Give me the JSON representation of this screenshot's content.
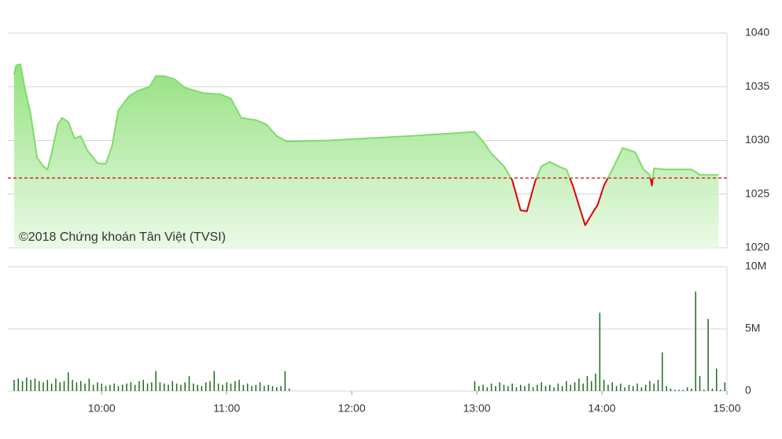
{
  "chart_data": [
    {
      "type": "line",
      "watermark": "©2018 Chứng khoán Tân Việt (TVSI)",
      "reference": 1026.5,
      "reference_color": "#e00000",
      "up_color": "#7fdb6a",
      "down_color": "#e00000",
      "xlim": [
        555,
        900
      ],
      "ylim": [
        1020,
        1040
      ],
      "yticks": [
        1020,
        1025,
        1030,
        1035,
        1040
      ],
      "grid": true,
      "x": [
        558,
        559,
        561,
        563,
        566,
        569,
        572,
        574,
        576,
        579,
        581,
        584,
        587,
        590,
        593,
        598,
        602,
        605,
        608,
        613,
        617,
        623,
        626,
        630,
        635,
        640,
        649,
        657,
        662,
        667,
        674,
        679,
        684,
        689,
        709,
        747,
        779,
        783,
        787,
        793,
        797,
        801,
        804,
        808,
        811,
        815,
        819,
        823,
        826,
        832,
        836,
        838,
        841,
        845,
        850,
        856,
        860,
        863,
        864,
        865,
        870,
        883,
        887,
        896
      ],
      "values": [
        1036.1,
        1037,
        1037.1,
        1035,
        1032.4,
        1028.4,
        1027.6,
        1027.3,
        1028.8,
        1031.5,
        1032.1,
        1031.7,
        1030.2,
        1030.4,
        1029.1,
        1027.9,
        1027.8,
        1029.5,
        1032.8,
        1034.1,
        1034.6,
        1035,
        1036,
        1036,
        1035.7,
        1034.9,
        1034.4,
        1034.3,
        1033.9,
        1032.1,
        1031.9,
        1031.5,
        1030.4,
        1029.9,
        1030,
        1030.4,
        1030.8,
        1029.9,
        1028.8,
        1027.6,
        1026.3,
        1023.5,
        1023.4,
        1026.2,
        1027.6,
        1028,
        1027.6,
        1027.3,
        1025.8,
        1022.1,
        1023.4,
        1024,
        1025.8,
        1027.3,
        1029.3,
        1028.9,
        1027.3,
        1026.8,
        1025.8,
        1027.4,
        1027.3,
        1027.3,
        1026.8,
        1026.8
      ]
    },
    {
      "type": "bar",
      "color": "#1e6b1e",
      "xlim": [
        555,
        900
      ],
      "xticks": [
        {
          "value": 600,
          "label": "10:00"
        },
        {
          "value": 660,
          "label": "11:00"
        },
        {
          "value": 720,
          "label": "12:00"
        },
        {
          "value": 780,
          "label": "13:00"
        },
        {
          "value": 840,
          "label": "14:00"
        },
        {
          "value": 900,
          "label": "15:00"
        }
      ],
      "ylim": [
        0,
        10000000
      ],
      "yticks": [
        0,
        {
          "value": 5000000,
          "label": "5M"
        },
        {
          "value": 10000000,
          "label": "10M"
        }
      ],
      "grid": true,
      "x": [
        558,
        560,
        562,
        564,
        566,
        568,
        570,
        572,
        574,
        576,
        578,
        580,
        582,
        584,
        586,
        588,
        590,
        592,
        594,
        596,
        598,
        600,
        602,
        604,
        606,
        608,
        610,
        612,
        614,
        616,
        618,
        620,
        622,
        624,
        626,
        628,
        630,
        632,
        634,
        636,
        638,
        640,
        642,
        644,
        646,
        648,
        650,
        652,
        654,
        656,
        658,
        660,
        662,
        664,
        666,
        668,
        670,
        672,
        674,
        676,
        678,
        680,
        682,
        684,
        686,
        688,
        690,
        779,
        781,
        783,
        785,
        787,
        789,
        791,
        793,
        795,
        797,
        799,
        801,
        803,
        805,
        807,
        809,
        811,
        813,
        815,
        817,
        819,
        821,
        823,
        825,
        827,
        829,
        831,
        833,
        835,
        837,
        839,
        841,
        843,
        845,
        847,
        849,
        851,
        853,
        855,
        857,
        859,
        861,
        863,
        865,
        867,
        869,
        871,
        873,
        875,
        877,
        879,
        881,
        883,
        885,
        887,
        889,
        891,
        893,
        895,
        897,
        899
      ],
      "values": [
        900000,
        1000000,
        800000,
        1100000,
        900000,
        1000000,
        800000,
        700000,
        900000,
        600000,
        1000000,
        700000,
        800000,
        1500000,
        900000,
        700000,
        800000,
        600000,
        1000000,
        500000,
        700000,
        600000,
        400000,
        500000,
        600000,
        400000,
        500000,
        600000,
        700000,
        500000,
        800000,
        900000,
        600000,
        700000,
        1600000,
        700000,
        600000,
        500000,
        800000,
        600000,
        500000,
        700000,
        1200000,
        600000,
        500000,
        400000,
        700000,
        800000,
        1600000,
        600000,
        500000,
        700000,
        600000,
        800000,
        900000,
        500000,
        600000,
        400000,
        500000,
        700000,
        400000,
        500000,
        400000,
        300000,
        400000,
        1600000,
        200000,
        800000,
        400000,
        500000,
        300000,
        600000,
        400000,
        700000,
        500000,
        400000,
        600000,
        300000,
        500000,
        400000,
        600000,
        300000,
        500000,
        700000,
        400000,
        500000,
        300000,
        600000,
        400000,
        800000,
        500000,
        700000,
        1000000,
        600000,
        1200000,
        800000,
        1400000,
        6300000,
        900000,
        500000,
        700000,
        400000,
        600000,
        300000,
        500000,
        400000,
        600000,
        300000,
        500000,
        800000,
        600000,
        900000,
        3100000,
        400000,
        200000,
        100000,
        100000,
        100000,
        300000,
        200000,
        8000000,
        1200000,
        100000,
        5800000,
        200000,
        1800000,
        100000,
        700000
      ]
    }
  ]
}
